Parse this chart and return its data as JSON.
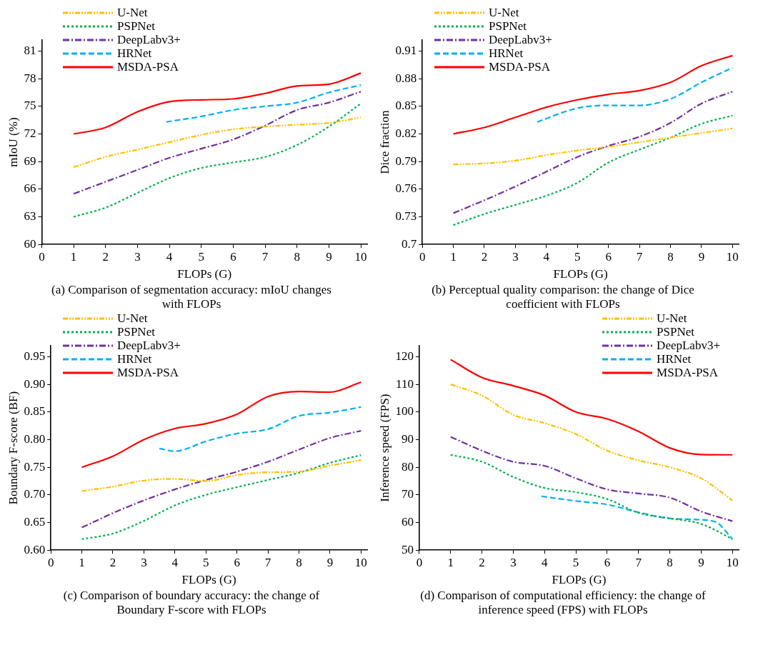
{
  "chart_data": [
    {
      "type": "line",
      "xlabel": "FLOPs (G)",
      "ylabel": "mIoU (%)",
      "annotations": [
        "(a) Comparison of segmentation accuracy: mIoU changes with FLOPs"
      ],
      "xlim": [
        0,
        10.2
      ],
      "xticks": [
        0,
        1,
        2,
        3,
        4,
        5,
        6,
        7,
        8,
        9,
        10
      ],
      "ylim": [
        60,
        82.2
      ],
      "yticks": [
        60,
        63,
        66,
        69,
        72,
        75,
        78,
        81
      ],
      "grid": false,
      "legend": "top left",
      "marker": "none",
      "x": [
        1,
        2,
        3,
        4,
        5,
        6,
        7,
        8,
        9,
        10
      ],
      "series": [
        {
          "name": "U-Net",
          "color": "#ffc000",
          "line_style": "dashdotdot",
          "values": [
            68.4,
            69.5,
            70.3,
            71.1,
            71.9,
            72.5,
            72.8,
            73.0,
            73.2,
            73.8
          ]
        },
        {
          "name": "PSPNet",
          "color": "#00b050",
          "line_style": "dotted",
          "values": [
            63.0,
            64.0,
            65.6,
            67.2,
            68.3,
            68.9,
            69.5,
            70.8,
            72.8,
            75.3
          ]
        },
        {
          "name": "DeepLabv3+",
          "color": "#7030a0",
          "line_style": "dashdot",
          "values": [
            65.5,
            66.8,
            68.1,
            69.4,
            70.4,
            71.4,
            72.9,
            74.6,
            75.4,
            76.6
          ]
        },
        {
          "name": "HRNet",
          "color": "#00b0f0",
          "line_style": "dashed",
          "x": [
            3.9,
            5,
            6,
            7,
            8,
            9,
            10
          ],
          "values": [
            73.3,
            73.9,
            74.6,
            75.0,
            75.4,
            76.5,
            77.3
          ]
        },
        {
          "name": "MSDA-PSA",
          "color": "#ff0000",
          "line_style": "solid",
          "values": [
            72.0,
            72.7,
            74.4,
            75.5,
            75.7,
            75.8,
            76.4,
            77.2,
            77.4,
            78.6
          ]
        }
      ]
    },
    {
      "type": "line",
      "xlabel": "FLOPs (G)",
      "ylabel": "Dice fraction",
      "annotations": [
        "(b) Perceptual quality comparison: the change of Dice coefficient with FLOPs"
      ],
      "xlim": [
        0,
        10.2
      ],
      "xticks": [
        0,
        1,
        2,
        3,
        4,
        5,
        6,
        7,
        8,
        9,
        10
      ],
      "ylim": [
        0.7,
        0.922
      ],
      "yticks": [
        0.7,
        0.73,
        0.76,
        0.79,
        0.82,
        0.85,
        0.88,
        0.91
      ],
      "grid": false,
      "legend": "top left",
      "marker": "none",
      "x": [
        1,
        2,
        3,
        4,
        5,
        6,
        7,
        8,
        9,
        10
      ],
      "series": [
        {
          "name": "U-Net",
          "color": "#ffc000",
          "line_style": "dashdotdot",
          "values": [
            0.787,
            0.788,
            0.791,
            0.797,
            0.802,
            0.806,
            0.811,
            0.816,
            0.821,
            0.826
          ]
        },
        {
          "name": "PSPNet",
          "color": "#00b050",
          "line_style": "dotted",
          "values": [
            0.721,
            0.733,
            0.743,
            0.753,
            0.767,
            0.789,
            0.803,
            0.816,
            0.831,
            0.84
          ]
        },
        {
          "name": "DeepLabv3+",
          "color": "#7030a0",
          "line_style": "dashdot",
          "values": [
            0.734,
            0.748,
            0.763,
            0.779,
            0.795,
            0.807,
            0.817,
            0.832,
            0.853,
            0.866
          ]
        },
        {
          "name": "HRNet",
          "color": "#00b0f0",
          "line_style": "dashed",
          "x": [
            3.7,
            5,
            6,
            7,
            8,
            9,
            10
          ],
          "values": [
            0.833,
            0.848,
            0.851,
            0.851,
            0.858,
            0.876,
            0.892
          ]
        },
        {
          "name": "MSDA-PSA",
          "color": "#ff0000",
          "line_style": "solid",
          "values": [
            0.82,
            0.827,
            0.838,
            0.849,
            0.857,
            0.863,
            0.867,
            0.876,
            0.894,
            0.905
          ]
        }
      ]
    },
    {
      "type": "line",
      "xlabel": "FLOPs (G)",
      "ylabel": "Boundary F-score (BF)",
      "annotations": [
        "(c) Comparison of boundary accuracy: the change of Boundary F-score with FLOPs"
      ],
      "xlim": [
        0,
        10.2
      ],
      "xticks": [
        0,
        1,
        2,
        3,
        4,
        5,
        6,
        7,
        8,
        9,
        10
      ],
      "ylim": [
        0.6,
        0.97
      ],
      "yticks": [
        {
          "value": 0.6,
          "label": "0.60"
        },
        0.65,
        {
          "value": 0.7,
          "label": "0.70"
        },
        0.75,
        {
          "value": 0.8,
          "label": "0.80"
        },
        0.85,
        {
          "value": 0.9,
          "label": "0.90"
        },
        0.95
      ],
      "grid": false,
      "legend": "top left",
      "marker": "none",
      "x": [
        1,
        2,
        3,
        4,
        5,
        6,
        7,
        8,
        9,
        10
      ],
      "series": [
        {
          "name": "U-Net",
          "color": "#ffc000",
          "line_style": "dashdotdot",
          "values": [
            0.707,
            0.715,
            0.726,
            0.729,
            0.725,
            0.736,
            0.741,
            0.742,
            0.753,
            0.763
          ]
        },
        {
          "name": "PSPNet",
          "color": "#00b050",
          "line_style": "dotted",
          "values": [
            0.62,
            0.63,
            0.653,
            0.681,
            0.7,
            0.714,
            0.727,
            0.74,
            0.758,
            0.772
          ]
        },
        {
          "name": "DeepLabv3+",
          "color": "#7030a0",
          "line_style": "dashdot",
          "values": [
            0.641,
            0.667,
            0.69,
            0.71,
            0.727,
            0.742,
            0.76,
            0.782,
            0.803,
            0.816
          ]
        },
        {
          "name": "HRNet",
          "color": "#00b0f0",
          "line_style": "dashed",
          "x": [
            3.5,
            4,
            5,
            6,
            7,
            8,
            9,
            10
          ],
          "values": [
            0.784,
            0.779,
            0.797,
            0.811,
            0.819,
            0.843,
            0.849,
            0.859
          ]
        },
        {
          "name": "MSDA-PSA",
          "color": "#ff0000",
          "line_style": "solid",
          "values": [
            0.75,
            0.77,
            0.8,
            0.82,
            0.829,
            0.846,
            0.878,
            0.887,
            0.886,
            0.904
          ]
        }
      ]
    },
    {
      "type": "line",
      "xlabel": "FLOPs (G)",
      "ylabel": "Inference speed (FPS)",
      "annotations": [
        "(d) Comparison of computational efficiency: the change of inference speed (FPS) with FLOPs"
      ],
      "xlim": [
        0,
        10.2
      ],
      "xticks": [
        0,
        1,
        2,
        3,
        4,
        5,
        6,
        7,
        8,
        9,
        10
      ],
      "ylim": [
        50,
        124
      ],
      "yticks": [
        50,
        60,
        70,
        80,
        90,
        100,
        110,
        120
      ],
      "grid": false,
      "legend": "top right",
      "marker": "none",
      "x": [
        1,
        2,
        3,
        4,
        5,
        6,
        7,
        8,
        9,
        10
      ],
      "series": [
        {
          "name": "U-Net",
          "color": "#ffc000",
          "line_style": "dashdotdot",
          "values": [
            110,
            106,
            99,
            96,
            92,
            86,
            82.5,
            80,
            76,
            68
          ]
        },
        {
          "name": "PSPNet",
          "color": "#00b050",
          "line_style": "dotted",
          "values": [
            84.5,
            82,
            76.5,
            72.5,
            71,
            68.5,
            63.5,
            61.5,
            59.5,
            54
          ]
        },
        {
          "name": "DeepLabv3+",
          "color": "#7030a0",
          "line_style": "dashdot",
          "values": [
            91,
            86,
            82,
            80.5,
            76,
            72,
            70.5,
            69,
            64,
            60.5
          ]
        },
        {
          "name": "HRNet",
          "color": "#00b0f0",
          "line_style": "dashed",
          "x": [
            3.9,
            5,
            6,
            7,
            8,
            9,
            9.5,
            10
          ],
          "values": [
            69.5,
            67.8,
            66.5,
            63.7,
            61.5,
            61,
            60,
            54
          ]
        },
        {
          "name": "MSDA-PSA",
          "color": "#ff0000",
          "line_style": "solid",
          "values": [
            119,
            112.5,
            109.5,
            106,
            100,
            97.5,
            93,
            87,
            84.6,
            84.5
          ]
        }
      ]
    }
  ]
}
